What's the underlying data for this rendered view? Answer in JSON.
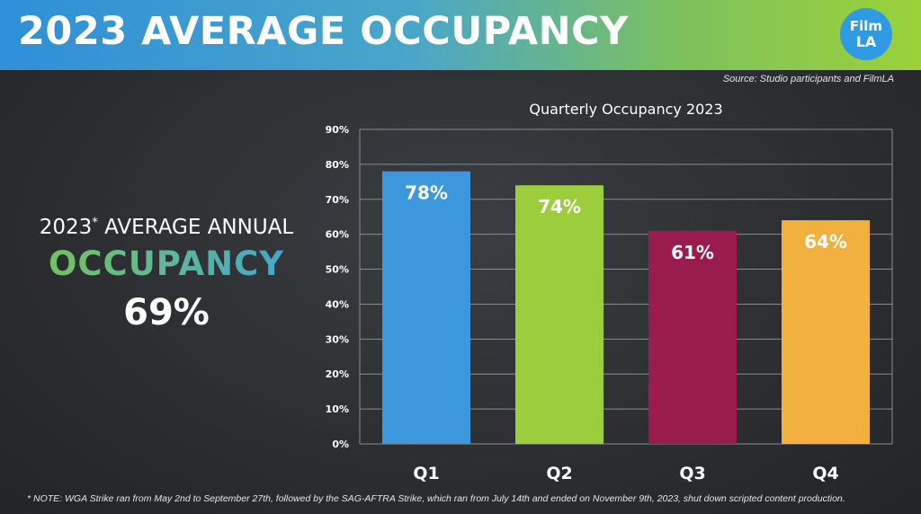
{
  "header": {
    "title": "2023 AVERAGE OCCUPANCY",
    "logo_line1": "Film",
    "logo_line2": "LA"
  },
  "source": "Source: Studio participants and FilmLA",
  "summary": {
    "label": "2023",
    "label_mark": "*",
    "label_rest": " AVERAGE ANNUAL",
    "highlight": "OCCUPANCY",
    "value": "69%"
  },
  "footnote": "* NOTE: WGA Strike ran from May 2nd to September 27th, followed by the SAG-AFTRA Strike, which ran from July 14th and ended on November 9th, 2023, shut down scripted content production.",
  "colors": {
    "banner_start": "#2f8fd8",
    "banner_end": "#9cd13a",
    "background": "#2b2d30",
    "grid": "#8a8c8f"
  },
  "chart_data": {
    "type": "bar",
    "title": "Quarterly Occupancy 2023",
    "categories": [
      "Q1",
      "Q2",
      "Q3",
      "Q4"
    ],
    "values": [
      78,
      74,
      61,
      64
    ],
    "data_labels": [
      "78%",
      "74%",
      "61%",
      "64%"
    ],
    "bar_colors": [
      "#3d97dc",
      "#9ccd3c",
      "#9a1c4f",
      "#f2b13f"
    ],
    "ylim": [
      0,
      90
    ],
    "yticks": [
      0,
      10,
      20,
      30,
      40,
      50,
      60,
      70,
      80,
      90
    ],
    "ytick_labels": [
      "0%",
      "10%",
      "20%",
      "30%",
      "40%",
      "50%",
      "60%",
      "70%",
      "80%",
      "90%"
    ],
    "grid": true,
    "xlabel": "",
    "ylabel": ""
  }
}
